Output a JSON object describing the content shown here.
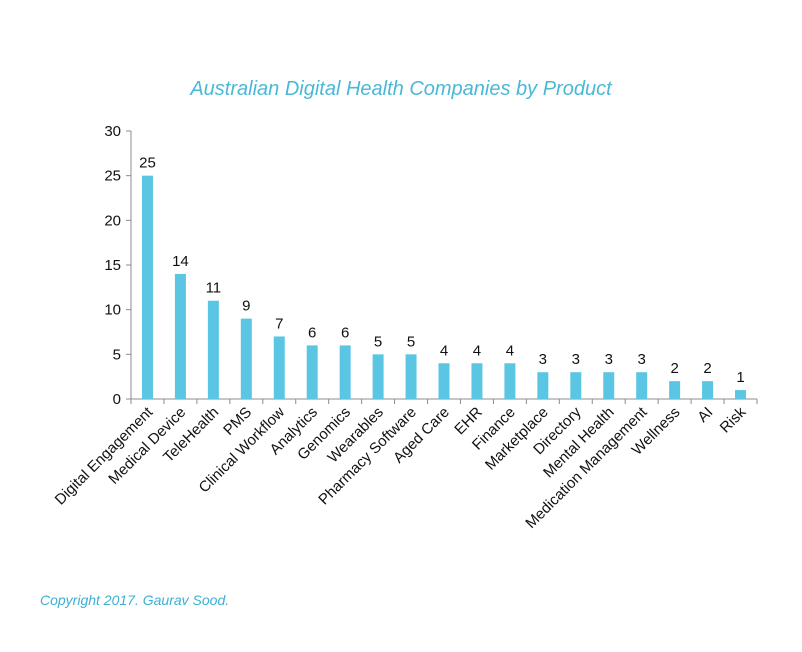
{
  "chart_data": {
    "type": "bar",
    "title": "Australian Digital Health Companies by Product",
    "categories": [
      "Digital Engagement",
      "Medical Device",
      "TeleHealth",
      "PMS",
      "Clinical Workflow",
      "Analytics",
      "Genomics",
      "Wearables",
      "Pharmacy Software",
      "Aged Care",
      "EHR",
      "Finance",
      "Marketplace",
      "Directory",
      "Mental Health",
      "Medication Management",
      "Wellness",
      "AI",
      "Risk"
    ],
    "values": [
      25,
      14,
      11,
      9,
      7,
      6,
      6,
      5,
      5,
      4,
      4,
      4,
      3,
      3,
      3,
      3,
      2,
      2,
      1
    ],
    "ylim": [
      0,
      30
    ],
    "yticks": [
      0,
      5,
      10,
      15,
      20,
      25,
      30
    ],
    "xlabel": "",
    "ylabel": "",
    "grid": false,
    "bar_color": "#5bc6e4",
    "show_data_labels": true
  },
  "footer": {
    "copyright": "Copyright 2017. Gaurav Sood."
  },
  "colors": {
    "title": "#4bb8d6",
    "copyright": "#3bb0d4",
    "axis": "#8c8c8c"
  }
}
